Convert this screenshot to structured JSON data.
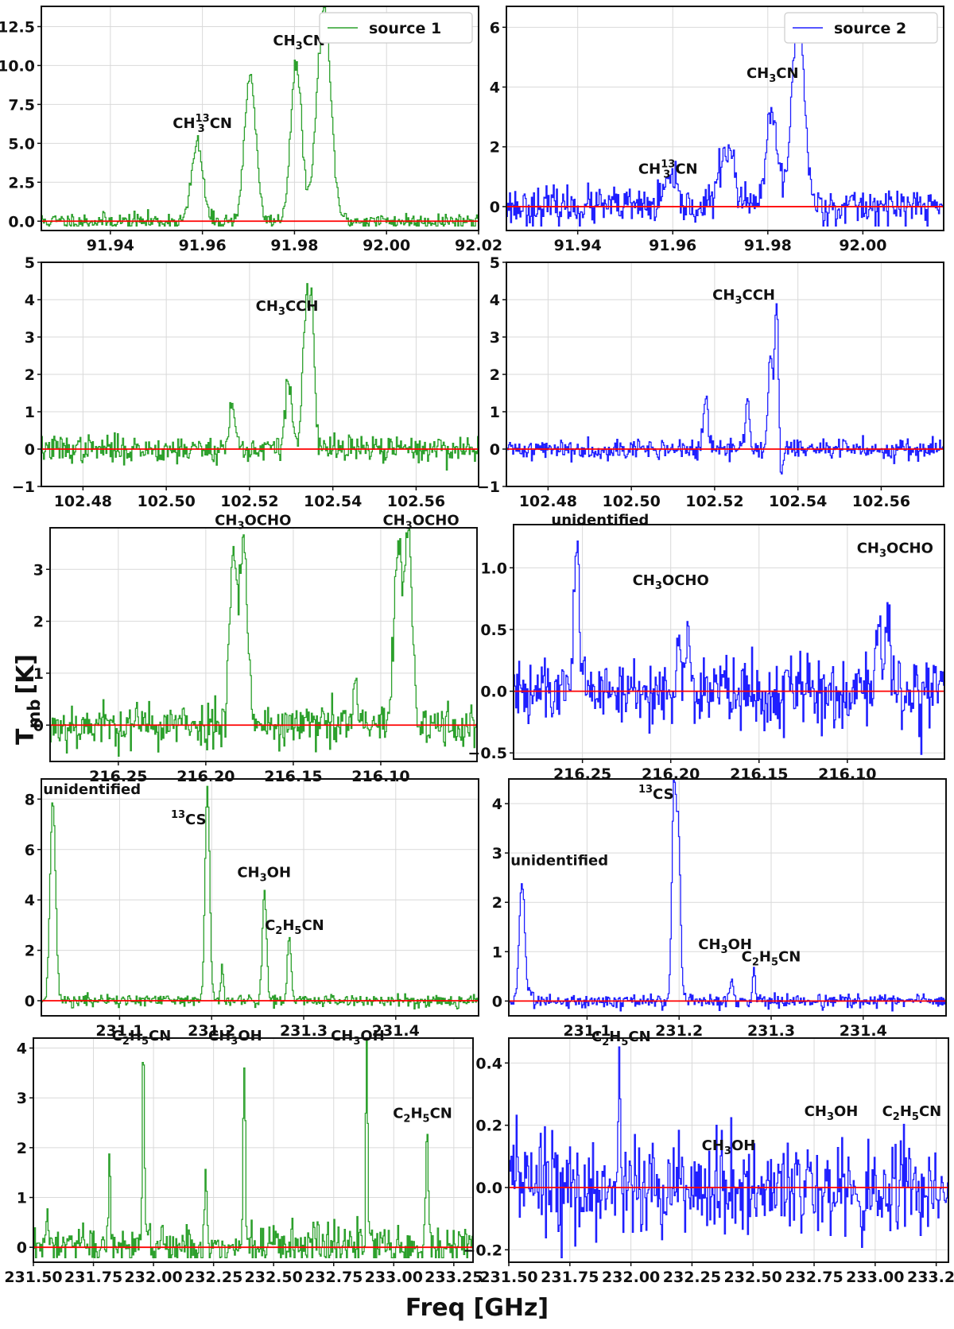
{
  "figure": {
    "ylabel": "T",
    "ylabel_sub": "mb",
    "ylabel_unit": "[K]",
    "xlabel": "Freq [GHz]"
  },
  "colors": {
    "source1": "#2ca02c",
    "source2": "#1f1fff",
    "baseline": "#ff0000"
  },
  "chart_data": [
    {
      "type": "line",
      "series": [
        {
          "name": "source 1"
        }
      ],
      "legend": "source 1",
      "legend_pos": "top-right",
      "xlim": [
        91.925,
        92.02
      ],
      "ylim": [
        -0.6,
        13.8
      ],
      "xticks": [
        91.94,
        91.96,
        91.98,
        92.0,
        92.02
      ],
      "xticklabels": [
        "91.94",
        "91.96",
        "91.98",
        "92.00",
        "92.02"
      ],
      "yticks": [
        0,
        2.5,
        5,
        7.5,
        10,
        12.5
      ],
      "yticklabels": [
        "0.0",
        "2.5",
        "5.0",
        "7.5",
        "10.0",
        "12.5"
      ],
      "noise": 0.3,
      "seed": 11,
      "peaks": [
        [
          91.959,
          5.0,
          0.0012
        ],
        [
          91.9705,
          9.5,
          0.0012
        ],
        [
          91.9805,
          10.0,
          0.0012
        ],
        [
          91.9865,
          13.7,
          0.0015
        ]
      ],
      "annotations": [
        {
          "text": "CH3CN",
          "x": 91.981,
          "y": 11.3
        },
        {
          "text": "CH313CN",
          "x": 91.96,
          "y": 6.0
        }
      ]
    },
    {
      "type": "line",
      "series": [
        {
          "name": "source 2"
        }
      ],
      "legend": "source 2",
      "legend_pos": "top-right",
      "xlim": [
        91.925,
        92.017
      ],
      "ylim": [
        -0.8,
        6.7
      ],
      "xticks": [
        91.94,
        91.96,
        91.98,
        92.0
      ],
      "xticklabels": [
        "91.94",
        "91.96",
        "91.98",
        "92.00"
      ],
      "yticks": [
        0,
        2,
        4,
        6
      ],
      "yticklabels": [
        "0",
        "2",
        "4",
        "6"
      ],
      "noise": 0.35,
      "seed": 23,
      "peaks": [
        [
          91.9595,
          0.9,
          0.0012
        ],
        [
          91.9715,
          2.0,
          0.0015
        ],
        [
          91.981,
          3.0,
          0.0012
        ],
        [
          91.9865,
          6.4,
          0.0013
        ]
      ],
      "annotations": [
        {
          "text": "CH3CN",
          "x": 91.981,
          "y": 4.3
        },
        {
          "text": "CH313CN",
          "x": 91.959,
          "y": 1.1
        }
      ]
    },
    {
      "type": "line",
      "xlim": [
        102.47,
        102.575
      ],
      "ylim": [
        -1,
        5
      ],
      "xticks": [
        102.48,
        102.5,
        102.52,
        102.54,
        102.56
      ],
      "xticklabels": [
        "102.48",
        "102.50",
        "102.52",
        "102.54",
        "102.56"
      ],
      "yticks": [
        -1,
        0,
        1,
        2,
        3,
        4,
        5
      ],
      "yticklabels": [
        "−1",
        "0",
        "1",
        "2",
        "3",
        "4",
        "5"
      ],
      "noise": 0.2,
      "seed": 37,
      "peaks": [
        [
          102.516,
          1.2,
          0.0007
        ],
        [
          102.5295,
          1.8,
          0.0008
        ],
        [
          102.5335,
          3.5,
          0.0007
        ],
        [
          102.535,
          3.65,
          0.0007
        ]
      ],
      "annotations": [
        {
          "text": "CH3CCH",
          "x": 102.529,
          "y": 3.7
        }
      ]
    },
    {
      "type": "line",
      "xlim": [
        102.47,
        102.575
      ],
      "ylim": [
        -1,
        5
      ],
      "xticks": [
        102.48,
        102.5,
        102.52,
        102.54,
        102.56
      ],
      "xticklabels": [
        "102.48",
        "102.50",
        "102.52",
        "102.54",
        "102.56"
      ],
      "yticks": [
        -1,
        0,
        1,
        2,
        3,
        4,
        5
      ],
      "yticklabels": [
        "−1",
        "0",
        "1",
        "2",
        "3",
        "4",
        "5"
      ],
      "noise": 0.15,
      "seed": 41,
      "peaks": [
        [
          102.518,
          1.4,
          0.0005
        ],
        [
          102.528,
          1.4,
          0.0005
        ],
        [
          102.5335,
          2.6,
          0.0005
        ],
        [
          102.535,
          3.75,
          0.0005
        ]
      ],
      "dips": [
        [
          102.536,
          -0.9,
          0.0004
        ]
      ],
      "annotations": [
        {
          "text": "CH3CCH",
          "x": 102.527,
          "y": 4.0
        }
      ]
    },
    {
      "type": "line",
      "xlim": [
        216.289,
        216.045
      ],
      "ylim": [
        -0.7,
        3.8
      ],
      "xticks": [
        216.25,
        216.2,
        216.15,
        216.1
      ],
      "xticklabels": [
        "216.25",
        "216.20",
        "216.15",
        "216.10"
      ],
      "yticks": [
        0,
        1,
        2,
        3
      ],
      "yticklabels": [
        "0",
        "1",
        "2",
        "3"
      ],
      "noise": 0.25,
      "seed": 53,
      "peaks": [
        [
          216.184,
          3.3,
          0.0022
        ],
        [
          216.178,
          3.5,
          0.0022
        ],
        [
          216.114,
          0.9,
          0.001
        ],
        [
          216.09,
          3.3,
          0.0022
        ],
        [
          216.084,
          3.6,
          0.0022
        ]
      ],
      "annotations": [
        {
          "text": "CH3OCHO",
          "x": 216.173,
          "y": 3.85
        },
        {
          "text": "CH3OCHO",
          "x": 216.077,
          "y": 3.85
        }
      ]
    },
    {
      "type": "line",
      "xlim": [
        216.289,
        216.045
      ],
      "ylim": [
        -0.55,
        1.35
      ],
      "xticks": [
        216.25,
        216.2,
        216.15,
        216.1
      ],
      "xticklabels": [
        "216.25",
        "216.20",
        "216.15",
        "216.10"
      ],
      "yticks": [
        -0.5,
        0,
        0.5,
        1.0
      ],
      "yticklabels": [
        "−0.5",
        "0.0",
        "0.5",
        "1.0"
      ],
      "noise": 0.16,
      "seed": 61,
      "peaks": [
        [
          216.253,
          1.3,
          0.0015
        ],
        [
          216.195,
          0.5,
          0.001
        ],
        [
          216.19,
          0.55,
          0.001
        ],
        [
          216.082,
          0.6,
          0.0012
        ],
        [
          216.077,
          0.75,
          0.0012
        ]
      ],
      "annotations": [
        {
          "text": "unidentified",
          "x": 216.24,
          "y": 1.35
        },
        {
          "text": "CH3OCHO",
          "x": 216.2,
          "y": 0.86
        },
        {
          "text": "CH3OCHO",
          "x": 216.073,
          "y": 1.12
        }
      ]
    },
    {
      "type": "line",
      "xlim": [
        231.015,
        231.49
      ],
      "ylim": [
        -0.6,
        8.8
      ],
      "xticks": [
        231.1,
        231.2,
        231.3,
        231.4
      ],
      "xticklabels": [
        "231.1",
        "231.2",
        "231.3",
        "231.4"
      ],
      "yticks": [
        0,
        2,
        4,
        6,
        8
      ],
      "yticklabels": [
        "0",
        "2",
        "4",
        "6",
        "8"
      ],
      "noise": 0.15,
      "seed": 71,
      "peaks": [
        [
          231.028,
          8.0,
          0.003
        ],
        [
          231.196,
          8.5,
          0.0025
        ],
        [
          231.258,
          4.5,
          0.0022
        ],
        [
          231.285,
          2.5,
          0.002
        ],
        [
          231.212,
          1.5,
          0.0015
        ]
      ],
      "annotations": [
        {
          "text": "unidentified",
          "x": 231.07,
          "y": 8.2
        },
        {
          "text": "13CS",
          "x": 231.175,
          "y": 7.0
        },
        {
          "text": "CH3OH",
          "x": 231.257,
          "y": 4.9
        },
        {
          "text": "C2H5CN",
          "x": 231.29,
          "y": 2.8
        }
      ]
    },
    {
      "type": "line",
      "xlim": [
        231.015,
        231.49
      ],
      "ylim": [
        -0.3,
        4.5
      ],
      "xticks": [
        231.1,
        231.2,
        231.3,
        231.4
      ],
      "xticklabels": [
        "231.1",
        "231.2",
        "231.3",
        "231.4"
      ],
      "yticks": [
        0,
        1,
        2,
        3,
        4
      ],
      "yticklabels": [
        "0",
        "1",
        "2",
        "3",
        "4"
      ],
      "noise": 0.08,
      "seed": 83,
      "peaks": [
        [
          231.03,
          2.4,
          0.003
        ],
        [
          231.195,
          4.3,
          0.0022
        ],
        [
          231.2,
          3.2,
          0.0022
        ],
        [
          231.258,
          0.4,
          0.002
        ],
        [
          231.282,
          0.7,
          0.0015
        ]
      ],
      "annotations": [
        {
          "text": "13CS",
          "x": 231.175,
          "y": 4.1
        },
        {
          "text": "unidentified",
          "x": 231.07,
          "y": 2.75
        },
        {
          "text": "CH3OH",
          "x": 231.25,
          "y": 1.05
        },
        {
          "text": "C2H5CN",
          "x": 231.3,
          "y": 0.8
        }
      ]
    },
    {
      "type": "line",
      "xlim": [
        231.5,
        233.33
      ],
      "ylim": [
        -0.3,
        4.2
      ],
      "xticks": [
        231.5,
        231.75,
        232.0,
        232.25,
        232.5,
        232.75,
        233.0,
        233.25
      ],
      "xticklabels": [
        "231.50",
        "231.75",
        "232.00",
        "232.25",
        "232.50",
        "232.75",
        "233.00",
        "233.25"
      ],
      "yticks": [
        0,
        1,
        2,
        3,
        4
      ],
      "yticklabels": [
        "0",
        "1",
        "2",
        "3",
        "4"
      ],
      "noise": 0.28,
      "seed": 97,
      "peaks": [
        [
          231.96,
          3.9,
          0.0045
        ],
        [
          232.38,
          3.9,
          0.0045
        ],
        [
          232.89,
          4.0,
          0.0045
        ],
        [
          233.14,
          2.25,
          0.006
        ],
        [
          231.82,
          1.9,
          0.004
        ],
        [
          232.22,
          1.9,
          0.004
        ]
      ],
      "annotations": [
        {
          "text": "C2H5CN",
          "x": 231.95,
          "y": 4.15
        },
        {
          "text": "CH3OH",
          "x": 232.34,
          "y": 4.15
        },
        {
          "text": "CH3OH",
          "x": 232.85,
          "y": 4.15
        },
        {
          "text": "C2H5CN",
          "x": 233.12,
          "y": 2.6
        }
      ]
    },
    {
      "type": "line",
      "xlim": [
        231.5,
        233.3
      ],
      "ylim": [
        -0.24,
        0.48
      ],
      "xticks": [
        231.5,
        231.75,
        232.0,
        232.25,
        232.5,
        232.75,
        233.0,
        233.25
      ],
      "xticklabels": [
        "231.50",
        "231.75",
        "232.00",
        "232.25",
        "232.50",
        "232.75",
        "233.00",
        "233.25"
      ],
      "yticks": [
        -0.2,
        0,
        0.2,
        0.4
      ],
      "yticklabels": [
        "−0.2",
        "0.0",
        "0.2",
        "0.4"
      ],
      "noise": 0.09,
      "seed": 113,
      "peaks": [
        [
          231.955,
          0.44,
          0.0035
        ]
      ],
      "annotations": [
        {
          "text": "C2H5CN",
          "x": 231.96,
          "y": 0.47
        },
        {
          "text": "CH3OH",
          "x": 232.4,
          "y": 0.12
        },
        {
          "text": "CH3OH",
          "x": 232.82,
          "y": 0.23
        },
        {
          "text": "C2H5CN",
          "x": 233.15,
          "y": 0.23
        }
      ]
    }
  ]
}
